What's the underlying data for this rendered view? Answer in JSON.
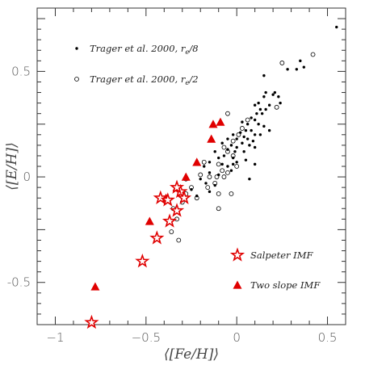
{
  "chart_data": {
    "type": "scatter",
    "xlabel": "⟨[Fe/H]⟩",
    "ylabel": "⟨[E/H]⟩",
    "xlim": [
      -1.1,
      0.6
    ],
    "ylim": [
      -0.7,
      0.8
    ],
    "x_ticks": [
      {
        "value": -1,
        "label": "−1"
      },
      {
        "value": -0.5,
        "label": "−0.5"
      },
      {
        "value": 0,
        "label": "0"
      },
      {
        "value": 0.5,
        "label": "0.5"
      }
    ],
    "y_ticks": [
      {
        "value": -0.5,
        "label": "-0.5"
      },
      {
        "value": 0,
        "label": "0"
      },
      {
        "value": 0.5,
        "label": "0.5"
      }
    ],
    "legend_top": [
      {
        "marker": "filled-dot",
        "text_main": "Trager et al. 2000, r",
        "text_sub": "e",
        "text_tail": "/8"
      },
      {
        "marker": "open-circle",
        "text_main": "Trager et al. 2000, r",
        "text_sub": "e",
        "text_tail": "/2"
      }
    ],
    "legend_bottom": [
      {
        "marker": "star",
        "text": "Salpeter IMF"
      },
      {
        "marker": "triangle",
        "text": "Two slope IMF"
      }
    ],
    "series": [
      {
        "name": "Trager et al. 2000, re/8",
        "marker": "filled-dot",
        "points": [
          [
            0.55,
            0.71
          ],
          [
            0.35,
            0.55
          ],
          [
            0.37,
            0.52
          ],
          [
            0.33,
            0.51
          ],
          [
            0.28,
            0.51
          ],
          [
            0.15,
            0.48
          ],
          [
            0.16,
            0.4
          ],
          [
            0.15,
            0.38
          ],
          [
            0.21,
            0.4
          ],
          [
            0.2,
            0.39
          ],
          [
            0.23,
            0.38
          ],
          [
            0.1,
            0.34
          ],
          [
            0.12,
            0.35
          ],
          [
            0.18,
            0.34
          ],
          [
            0.24,
            0.35
          ],
          [
            0.13,
            0.32
          ],
          [
            0.16,
            0.32
          ],
          [
            0.11,
            0.3
          ],
          [
            0.14,
            0.3
          ],
          [
            0.08,
            0.28
          ],
          [
            0.1,
            0.27
          ],
          [
            0.03,
            0.26
          ],
          [
            0.06,
            0.25
          ],
          [
            0.12,
            0.25
          ],
          [
            0.15,
            0.24
          ],
          [
            0.18,
            0.22
          ],
          [
            0.05,
            0.22
          ],
          [
            0.08,
            0.22
          ],
          [
            0.1,
            0.2
          ],
          [
            0.13,
            0.2
          ],
          [
            0.02,
            0.21
          ],
          [
            0.04,
            0.19
          ],
          [
            0.06,
            0.18
          ],
          [
            0.09,
            0.17
          ],
          [
            -0.02,
            0.2
          ],
          [
            0.0,
            0.18
          ],
          [
            0.03,
            0.16
          ],
          [
            0.07,
            0.15
          ],
          [
            -0.05,
            0.18
          ],
          [
            -0.03,
            0.15
          ],
          [
            0.0,
            0.14
          ],
          [
            0.1,
            0.14
          ],
          [
            -0.08,
            0.16
          ],
          [
            -0.05,
            0.13
          ],
          [
            -0.01,
            0.12
          ],
          [
            0.04,
            0.12
          ],
          [
            -0.07,
            0.1
          ],
          [
            -0.02,
            0.09
          ],
          [
            0.05,
            0.08
          ],
          [
            -0.12,
            0.12
          ],
          [
            -0.1,
            0.09
          ],
          [
            -0.15,
            0.07
          ],
          [
            -0.08,
            0.06
          ],
          [
            -0.02,
            0.06
          ],
          [
            0.1,
            0.06
          ],
          [
            -0.05,
            0.05
          ],
          [
            -0.03,
            0.03
          ],
          [
            0.0,
            0.07
          ],
          [
            -0.18,
            0.05
          ],
          [
            -0.15,
            0.02
          ],
          [
            -0.1,
            0.01
          ],
          [
            -0.2,
            -0.01
          ],
          [
            -0.17,
            -0.03
          ],
          [
            -0.12,
            -0.04
          ],
          [
            0.07,
            -0.01
          ],
          [
            -0.25,
            -0.06
          ],
          [
            -0.22,
            -0.09
          ],
          [
            -0.15,
            -0.07
          ]
        ]
      },
      {
        "name": "Trager et al. 2000, re/2",
        "marker": "open-circle",
        "points": [
          [
            0.42,
            0.58
          ],
          [
            0.25,
            0.54
          ],
          [
            0.22,
            0.33
          ],
          [
            0.06,
            0.27
          ],
          [
            0.03,
            0.23
          ],
          [
            0.01,
            0.2
          ],
          [
            -0.05,
            0.3
          ],
          [
            -0.02,
            0.17
          ],
          [
            -0.07,
            0.14
          ],
          [
            -0.05,
            0.12
          ],
          [
            -0.02,
            0.1
          ],
          [
            0.0,
            0.05
          ],
          [
            -0.1,
            0.06
          ],
          [
            -0.08,
            0.03
          ],
          [
            -0.05,
            0.02
          ],
          [
            -0.11,
            0.0
          ],
          [
            -0.07,
            0.0
          ],
          [
            -0.15,
            0.0
          ],
          [
            -0.2,
            0.01
          ],
          [
            -0.12,
            -0.03
          ],
          [
            -0.16,
            -0.05
          ],
          [
            -0.1,
            -0.08
          ],
          [
            -0.25,
            -0.05
          ],
          [
            -0.28,
            -0.08
          ],
          [
            -0.22,
            -0.1
          ],
          [
            -0.3,
            -0.12
          ],
          [
            -0.35,
            -0.15
          ],
          [
            -0.33,
            -0.2
          ],
          [
            -0.36,
            -0.26
          ],
          [
            -0.32,
            -0.3
          ],
          [
            -0.03,
            -0.08
          ],
          [
            -0.1,
            -0.15
          ],
          [
            -0.28,
            -0.01
          ],
          [
            -0.18,
            0.07
          ]
        ]
      },
      {
        "name": "Salpeter IMF",
        "marker": "star",
        "points": [
          [
            -0.8,
            -0.69
          ],
          [
            -0.52,
            -0.4
          ],
          [
            -0.44,
            -0.29
          ],
          [
            -0.37,
            -0.21
          ],
          [
            -0.33,
            -0.16
          ],
          [
            -0.42,
            -0.1
          ],
          [
            -0.38,
            -0.11
          ],
          [
            -0.31,
            -0.07
          ],
          [
            -0.29,
            -0.1
          ],
          [
            -0.33,
            -0.05
          ]
        ]
      },
      {
        "name": "Two slope IMF",
        "marker": "triangle",
        "points": [
          [
            -0.78,
            -0.52
          ],
          [
            -0.48,
            -0.21
          ],
          [
            -0.39,
            -0.1
          ],
          [
            -0.33,
            -0.05
          ],
          [
            -0.28,
            0.0
          ],
          [
            -0.22,
            0.07
          ],
          [
            -0.14,
            0.18
          ],
          [
            -0.13,
            0.25
          ],
          [
            -0.09,
            0.26
          ]
        ]
      }
    ]
  }
}
